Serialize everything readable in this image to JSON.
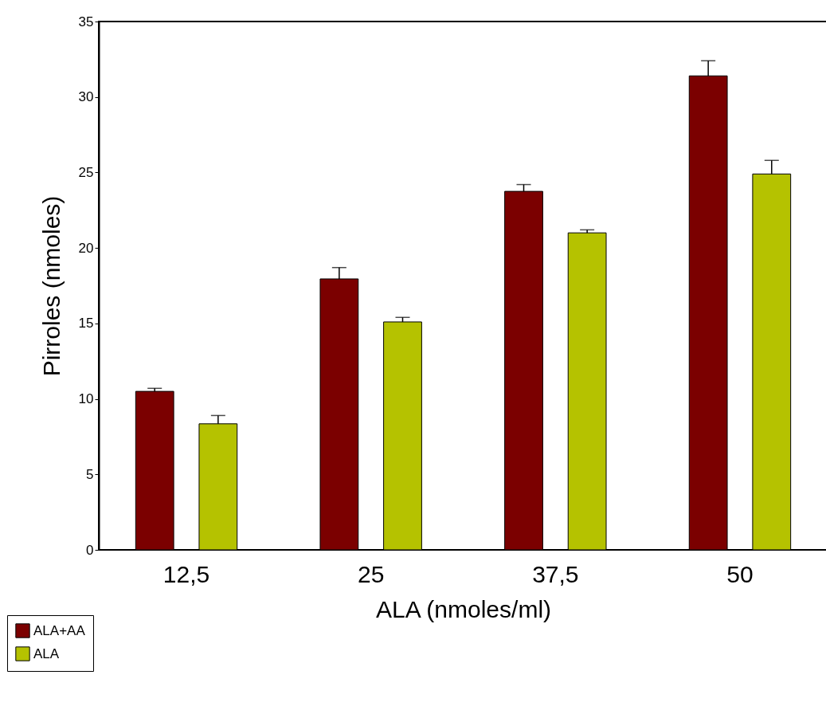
{
  "chart_data": {
    "type": "bar",
    "xlabel": "ALA (nmoles/ml)",
    "ylabel": "Pirroles (nmoles)",
    "categories": [
      "12,5",
      "25",
      "37,5",
      "50"
    ],
    "series": [
      {
        "name": "ALA+AA",
        "color": "#7b0000",
        "values": [
          10.5,
          17.95,
          23.75,
          31.4
        ],
        "errors": [
          [
            10.5,
            10.7
          ],
          [
            17.95,
            18.7
          ],
          [
            23.75,
            24.2
          ],
          [
            31.4,
            32.4
          ]
        ]
      },
      {
        "name": "ALA",
        "color": "#b5c200",
        "values": [
          8.35,
          15.1,
          21.0,
          24.9
        ],
        "errors": [
          [
            8.35,
            8.9
          ],
          [
            15.1,
            15.4
          ],
          [
            21.0,
            21.2
          ],
          [
            24.9,
            25.8
          ]
        ]
      }
    ],
    "ylim": [
      0,
      35
    ],
    "yticks": [
      0,
      5,
      10,
      15,
      20,
      25,
      30,
      35
    ],
    "grid": false,
    "legend": "bottom left"
  }
}
